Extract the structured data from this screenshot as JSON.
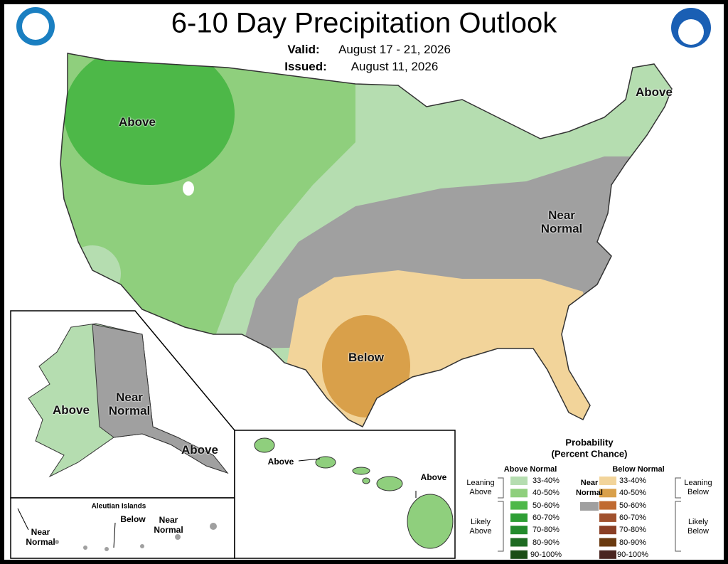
{
  "header": {
    "title": "6-10 Day Precipitation Outlook",
    "valid_label": "Valid:",
    "valid_dates": "August 17 - 21, 2026",
    "issued_label": "Issued:",
    "issued_date": "August 11, 2026"
  },
  "map_labels": {
    "conus": [
      "Above",
      "Above",
      "Near Normal",
      "Below"
    ],
    "alaska": [
      "Above",
      "Near Normal",
      "Above"
    ],
    "aleutians": {
      "title": "Aleutian Islands",
      "labels": [
        "Near Normal",
        "Below",
        "Near Normal"
      ]
    },
    "hawaii": [
      "Above",
      "Above"
    ]
  },
  "legend": {
    "title": "Probability",
    "subtitle": "(Percent Chance)",
    "above": {
      "heading": "Above Normal",
      "leaning": "Leaning Above",
      "likely": "Likely Above",
      "items": [
        {
          "range": "33-40%",
          "color": "#b5ddb0"
        },
        {
          "range": "40-50%",
          "color": "#8fcf7d"
        },
        {
          "range": "50-60%",
          "color": "#4db848"
        },
        {
          "range": "60-70%",
          "color": "#2e9e34"
        },
        {
          "range": "70-80%",
          "color": "#238b2c"
        },
        {
          "range": "80-90%",
          "color": "#1e6b22"
        },
        {
          "range": "90-100%",
          "color": "#1b4d16"
        }
      ]
    },
    "near": {
      "heading": "Near Normal",
      "color": "#a0a0a0"
    },
    "below": {
      "heading": "Below Normal",
      "leaning": "Leaning Below",
      "likely": "Likely Below",
      "items": [
        {
          "range": "33-40%",
          "color": "#f2d49a"
        },
        {
          "range": "40-50%",
          "color": "#d9a04a"
        },
        {
          "range": "50-60%",
          "color": "#c06a30"
        },
        {
          "range": "60-70%",
          "color": "#a0512e"
        },
        {
          "range": "70-80%",
          "color": "#8a3f25"
        },
        {
          "range": "80-90%",
          "color": "#6a3a10"
        },
        {
          "range": "90-100%",
          "color": "#4a2520"
        }
      ]
    }
  }
}
